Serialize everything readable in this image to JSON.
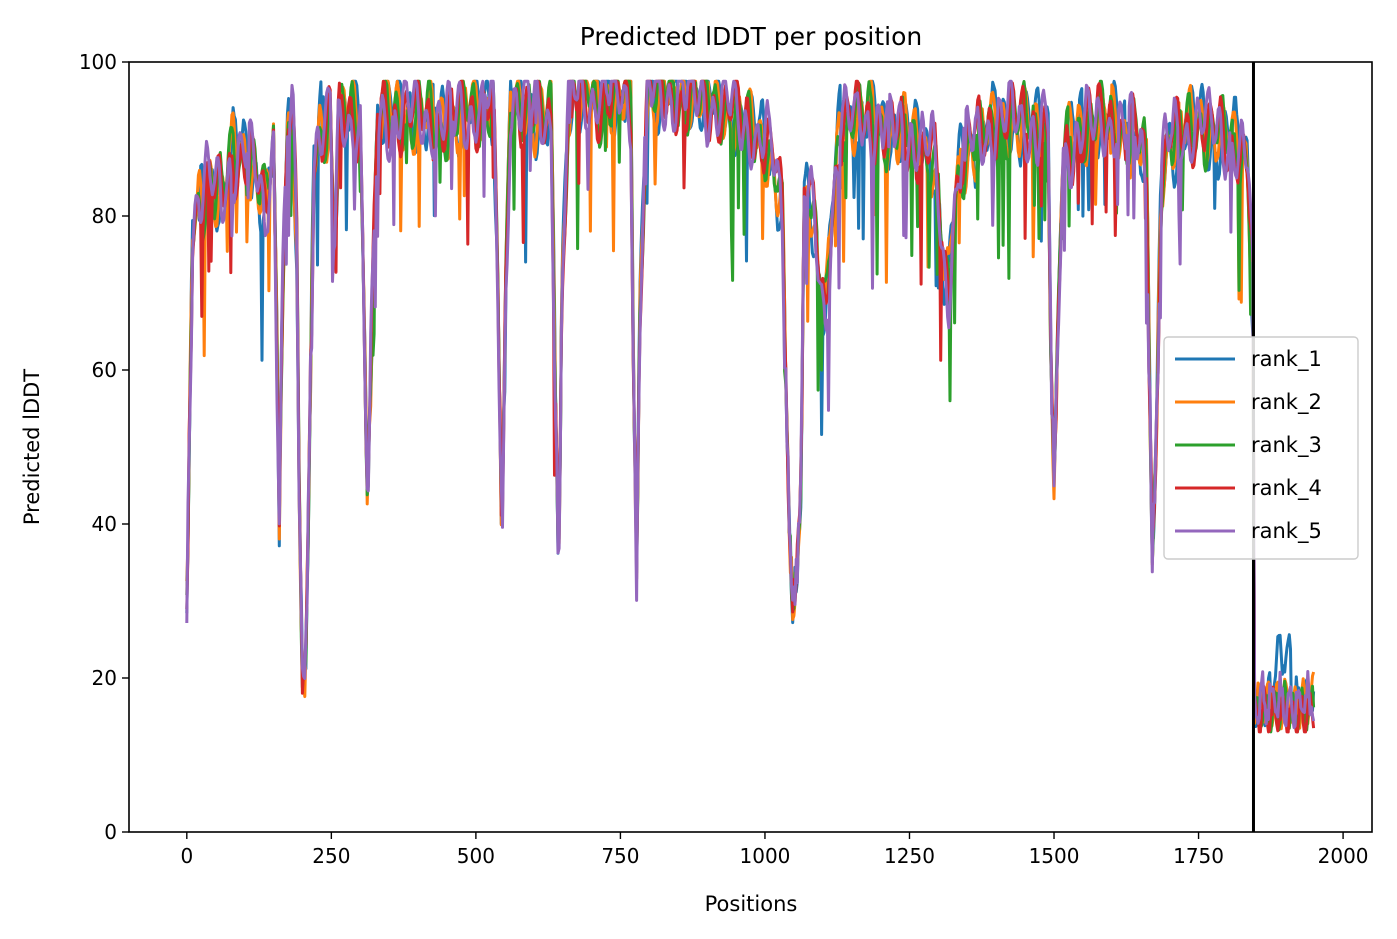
{
  "chart_data": {
    "type": "line",
    "title": "Predicted lDDT per position",
    "xlabel": "Positions",
    "ylabel": "Predicted lDDT",
    "xlim": [
      -100,
      2050
    ],
    "ylim": [
      0,
      100
    ],
    "xticks": [
      0,
      250,
      500,
      750,
      1000,
      1250,
      1500,
      1750,
      2000
    ],
    "yticks": [
      0,
      20,
      40,
      60,
      80,
      100
    ],
    "grid": false,
    "legend_position": "center-right",
    "vline_x": 1845,
    "x_max": 1950,
    "colors": {
      "rank_1": "#1f77b4",
      "rank_2": "#ff7f0e",
      "rank_3": "#2ca02c",
      "rank_4": "#d62728",
      "rank_5": "#9467bd",
      "vline": "#000000"
    },
    "baseline_profile": [
      [
        0,
        30
      ],
      [
        5,
        55
      ],
      [
        10,
        78
      ],
      [
        20,
        82
      ],
      [
        40,
        85
      ],
      [
        60,
        82
      ],
      [
        80,
        88
      ],
      [
        100,
        88
      ],
      [
        120,
        86
      ],
      [
        135,
        80
      ],
      [
        150,
        90
      ],
      [
        155,
        66
      ],
      [
        160,
        40
      ],
      [
        165,
        70
      ],
      [
        175,
        92
      ],
      [
        183,
        95
      ],
      [
        190,
        75
      ],
      [
        195,
        40
      ],
      [
        200,
        20
      ],
      [
        205,
        19
      ],
      [
        210,
        40
      ],
      [
        220,
        88
      ],
      [
        235,
        92
      ],
      [
        248,
        93
      ],
      [
        255,
        75
      ],
      [
        262,
        92
      ],
      [
        280,
        93
      ],
      [
        300,
        92
      ],
      [
        308,
        60
      ],
      [
        313,
        42
      ],
      [
        318,
        60
      ],
      [
        330,
        93
      ],
      [
        400,
        93
      ],
      [
        450,
        92
      ],
      [
        500,
        94
      ],
      [
        530,
        95
      ],
      [
        538,
        70
      ],
      [
        545,
        38
      ],
      [
        552,
        70
      ],
      [
        560,
        95
      ],
      [
        600,
        94
      ],
      [
        620,
        92
      ],
      [
        630,
        93
      ],
      [
        637,
        60
      ],
      [
        643,
        33
      ],
      [
        649,
        70
      ],
      [
        660,
        96
      ],
      [
        700,
        95
      ],
      [
        750,
        96
      ],
      [
        768,
        95
      ],
      [
        773,
        60
      ],
      [
        778,
        33
      ],
      [
        783,
        65
      ],
      [
        795,
        96
      ],
      [
        850,
        96
      ],
      [
        900,
        95
      ],
      [
        950,
        93
      ],
      [
        1000,
        90
      ],
      [
        1020,
        85
      ],
      [
        1030,
        80
      ],
      [
        1037,
        55
      ],
      [
        1042,
        40
      ],
      [
        1048,
        30
      ],
      [
        1055,
        33
      ],
      [
        1062,
        45
      ],
      [
        1068,
        82
      ],
      [
        1075,
        85
      ],
      [
        1085,
        78
      ],
      [
        1095,
        72
      ],
      [
        1105,
        65
      ],
      [
        1115,
        80
      ],
      [
        1130,
        92
      ],
      [
        1160,
        93
      ],
      [
        1200,
        92
      ],
      [
        1250,
        90
      ],
      [
        1290,
        88
      ],
      [
        1300,
        83
      ],
      [
        1310,
        72
      ],
      [
        1318,
        70
      ],
      [
        1325,
        80
      ],
      [
        1340,
        88
      ],
      [
        1400,
        92
      ],
      [
        1450,
        92
      ],
      [
        1490,
        91
      ],
      [
        1495,
        60
      ],
      [
        1500,
        45
      ],
      [
        1506,
        62
      ],
      [
        1515,
        88
      ],
      [
        1550,
        92
      ],
      [
        1600,
        92
      ],
      [
        1650,
        90
      ],
      [
        1660,
        85
      ],
      [
        1665,
        60
      ],
      [
        1670,
        36
      ],
      [
        1677,
        50
      ],
      [
        1685,
        85
      ],
      [
        1700,
        90
      ],
      [
        1750,
        92
      ],
      [
        1800,
        90
      ],
      [
        1835,
        88
      ],
      [
        1844,
        70
      ]
    ],
    "dips": [
      [
        160,
        40
      ],
      [
        202,
        19
      ],
      [
        313,
        42
      ],
      [
        545,
        37
      ],
      [
        643,
        33
      ],
      [
        778,
        33
      ],
      [
        1050,
        30
      ],
      [
        1100,
        65
      ],
      [
        1310,
        68
      ],
      [
        1500,
        45
      ],
      [
        1670,
        36
      ]
    ],
    "series": [
      {
        "name": "rank_1",
        "tail_mean": 17
      },
      {
        "name": "rank_2",
        "tail_mean": 17
      },
      {
        "name": "rank_3",
        "tail_mean": 16
      },
      {
        "name": "rank_4",
        "tail_mean": 15
      },
      {
        "name": "rank_5",
        "tail_mean": 17
      }
    ]
  }
}
